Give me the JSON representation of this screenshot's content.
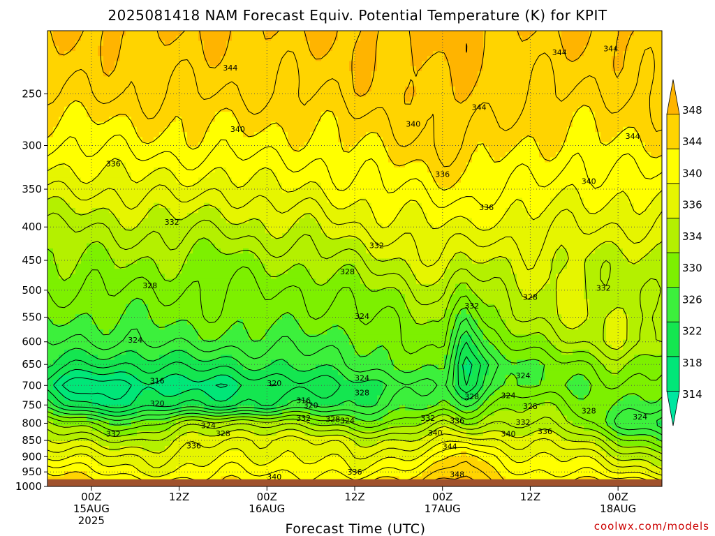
{
  "chart_data": {
    "type": "heatmap",
    "title": "2025081418 NAM Forecast Equiv. Potential Temperature (K) for KPIT",
    "xlabel": "Forecast Time (UTC)",
    "ylabel": "",
    "credit": "coolwx.com/models",
    "y_scale": "log-pressure",
    "y_ticks": [
      250,
      300,
      350,
      400,
      450,
      500,
      550,
      600,
      650,
      700,
      750,
      800,
      850,
      900,
      950,
      1000
    ],
    "y_range": [
      200,
      1000
    ],
    "x_ticks": [
      {
        "hour": 6,
        "line1": "00Z",
        "line2": "15AUG",
        "line3": "2025"
      },
      {
        "hour": 18,
        "line1": "12Z",
        "line2": "",
        "line3": ""
      },
      {
        "hour": 30,
        "line1": "00Z",
        "line2": "16AUG",
        "line3": ""
      },
      {
        "hour": 42,
        "line1": "12Z",
        "line2": "",
        "line3": ""
      },
      {
        "hour": 54,
        "line1": "00Z",
        "line2": "17AUG",
        "line3": ""
      },
      {
        "hour": 66,
        "line1": "12Z",
        "line2": "",
        "line3": ""
      },
      {
        "hour": 78,
        "line1": "00Z",
        "line2": "18AUG",
        "line3": ""
      }
    ],
    "x_range": [
      0,
      84
    ],
    "colorbar": {
      "levels": [
        314,
        318,
        322,
        326,
        330,
        334,
        338,
        342,
        346
      ],
      "labels": [
        "314",
        "318",
        "322",
        "326",
        "330",
        "334",
        "336",
        "340",
        "344",
        "348"
      ],
      "label_values": [
        314,
        318,
        322,
        326,
        330,
        334,
        336,
        340,
        344,
        348
      ],
      "colors": [
        "#00e6a0",
        "#00e678",
        "#14e650",
        "#3cf03c",
        "#7df000",
        "#b4f000",
        "#e6f500",
        "#ffff00",
        "#ffd400",
        "#ffb400"
      ]
    },
    "ground_color": "#a0522d",
    "surface_pressure": 975,
    "profile_levels": [
      1000,
      950,
      900,
      850,
      800,
      750,
      700,
      650,
      600,
      550,
      500,
      450,
      400,
      350,
      300,
      250,
      200
    ],
    "profiles": [
      {
        "hour": 0,
        "theta_e": [
          346,
          343,
          338,
          334,
          330,
          322,
          318,
          322,
          324,
          326,
          328,
          330,
          332,
          336,
          340,
          344,
          346
        ]
      },
      {
        "hour": 6,
        "theta_e": [
          344,
          340,
          337,
          333,
          328,
          318,
          314,
          320,
          324,
          326,
          328,
          330,
          332,
          336,
          340,
          344,
          346
        ]
      },
      {
        "hour": 12,
        "theta_e": [
          342,
          338,
          336,
          332,
          326,
          318,
          316,
          320,
          324,
          326,
          328,
          330,
          333,
          337,
          341,
          344,
          346
        ]
      },
      {
        "hour": 18,
        "theta_e": [
          342,
          338,
          336,
          334,
          330,
          320,
          317,
          321,
          325,
          327,
          328,
          330,
          333,
          337,
          341,
          344,
          346
        ]
      },
      {
        "hour": 24,
        "theta_e": [
          342,
          340,
          338,
          336,
          332,
          320,
          317,
          321,
          325,
          327,
          328,
          329,
          332,
          336,
          341,
          344,
          346
        ]
      },
      {
        "hour": 30,
        "theta_e": [
          343,
          340,
          338,
          337,
          332,
          320,
          318,
          322,
          325,
          327,
          328,
          330,
          334,
          338,
          341,
          344,
          346
        ]
      },
      {
        "hour": 36,
        "theta_e": [
          342,
          340,
          338,
          336,
          330,
          322,
          319,
          323,
          325,
          327,
          328,
          331,
          334,
          338,
          341,
          344,
          346
        ]
      },
      {
        "hour": 42,
        "theta_e": [
          342,
          338,
          336,
          334,
          328,
          322,
          321,
          324,
          325,
          327,
          329,
          332,
          336,
          339,
          342,
          345,
          346
        ]
      },
      {
        "hour": 48,
        "theta_e": [
          344,
          341,
          338,
          334,
          328,
          324,
          322,
          326,
          328,
          329,
          331,
          334,
          337,
          340,
          343,
          345,
          346
        ]
      },
      {
        "hour": 54,
        "theta_e": [
          348,
          344,
          340,
          336,
          332,
          326,
          325,
          328,
          330,
          331,
          333,
          336,
          338,
          341,
          344,
          346,
          347
        ]
      },
      {
        "hour": 57,
        "theta_e": [
          348,
          346,
          344,
          338,
          330,
          324,
          318,
          316,
          318,
          322,
          328,
          334,
          338,
          341,
          344,
          346,
          347
        ]
      },
      {
        "hour": 60,
        "theta_e": [
          344,
          342,
          340,
          336,
          332,
          328,
          324,
          322,
          326,
          330,
          332,
          334,
          337,
          340,
          343,
          345,
          346
        ]
      },
      {
        "hour": 66,
        "theta_e": [
          342,
          340,
          338,
          336,
          332,
          330,
          326,
          326,
          330,
          333,
          334,
          335,
          337,
          340,
          342,
          344,
          346
        ]
      },
      {
        "hour": 72,
        "theta_e": [
          344,
          340,
          338,
          334,
          330,
          328,
          326,
          328,
          332,
          334,
          334,
          334,
          336,
          338,
          341,
          344,
          346
        ]
      },
      {
        "hour": 78,
        "theta_e": [
          343,
          338,
          334,
          330,
          324,
          326,
          328,
          330,
          334,
          334,
          333,
          333,
          336,
          339,
          342,
          344,
          346
        ]
      },
      {
        "hour": 84,
        "theta_e": [
          342,
          336,
          332,
          326,
          320,
          324,
          326,
          328,
          332,
          333,
          332,
          333,
          336,
          339,
          342,
          344,
          346
        ]
      }
    ],
    "contour_labels": [
      {
        "text": "344",
        "hour": 25,
        "p": 228
      },
      {
        "text": "344",
        "hour": 59,
        "p": 262
      },
      {
        "text": "344",
        "hour": 77,
        "p": 213
      },
      {
        "text": "344",
        "hour": 70,
        "p": 216
      },
      {
        "text": "344",
        "hour": 80,
        "p": 290
      },
      {
        "text": "340",
        "hour": 26,
        "p": 283
      },
      {
        "text": "340",
        "hour": 50,
        "p": 278
      },
      {
        "text": "340",
        "hour": 74,
        "p": 340
      },
      {
        "text": "336",
        "hour": 9,
        "p": 320
      },
      {
        "text": "336",
        "hour": 54,
        "p": 332
      },
      {
        "text": "336",
        "hour": 60,
        "p": 373
      },
      {
        "text": "332",
        "hour": 17,
        "p": 393
      },
      {
        "text": "332",
        "hour": 45,
        "p": 427
      },
      {
        "text": "332",
        "hour": 58,
        "p": 528
      },
      {
        "text": "332",
        "hour": 76,
        "p": 496
      },
      {
        "text": "328",
        "hour": 14,
        "p": 492
      },
      {
        "text": "328",
        "hour": 41,
        "p": 468
      },
      {
        "text": "328",
        "hour": 66,
        "p": 512
      },
      {
        "text": "324",
        "hour": 12,
        "p": 596
      },
      {
        "text": "324",
        "hour": 43,
        "p": 548
      },
      {
        "text": "324",
        "hour": 43,
        "p": 682
      },
      {
        "text": "324",
        "hour": 65,
        "p": 676
      },
      {
        "text": "316",
        "hour": 15,
        "p": 688
      },
      {
        "text": "320",
        "hour": 31,
        "p": 694
      },
      {
        "text": "316",
        "hour": 35,
        "p": 738
      },
      {
        "text": "320",
        "hour": 15,
        "p": 746
      },
      {
        "text": "328",
        "hour": 43,
        "p": 718
      },
      {
        "text": "328",
        "hour": 58,
        "p": 728
      },
      {
        "text": "324",
        "hour": 63,
        "p": 725
      },
      {
        "text": "328",
        "hour": 66,
        "p": 753
      },
      {
        "text": "328",
        "hour": 74,
        "p": 765
      },
      {
        "text": "324",
        "hour": 81,
        "p": 782
      },
      {
        "text": "320",
        "hour": 36,
        "p": 750
      },
      {
        "text": "332",
        "hour": 52,
        "p": 785
      },
      {
        "text": "336",
        "hour": 56,
        "p": 792
      },
      {
        "text": "332",
        "hour": 35,
        "p": 785
      },
      {
        "text": "328",
        "hour": 39,
        "p": 788
      },
      {
        "text": "324",
        "hour": 41,
        "p": 792
      },
      {
        "text": "332",
        "hour": 65,
        "p": 797
      },
      {
        "text": "340",
        "hour": 63,
        "p": 830
      },
      {
        "text": "336",
        "hour": 68,
        "p": 823
      },
      {
        "text": "340",
        "hour": 53,
        "p": 827
      },
      {
        "text": "344",
        "hour": 55,
        "p": 868
      },
      {
        "text": "332",
        "hour": 9,
        "p": 830
      },
      {
        "text": "324",
        "hour": 22,
        "p": 806
      },
      {
        "text": "328",
        "hour": 24,
        "p": 829
      },
      {
        "text": "336",
        "hour": 20,
        "p": 866
      },
      {
        "text": "336",
        "hour": 42,
        "p": 950
      },
      {
        "text": "340",
        "hour": 31,
        "p": 966
      },
      {
        "text": "348",
        "hour": 56,
        "p": 958
      }
    ]
  }
}
